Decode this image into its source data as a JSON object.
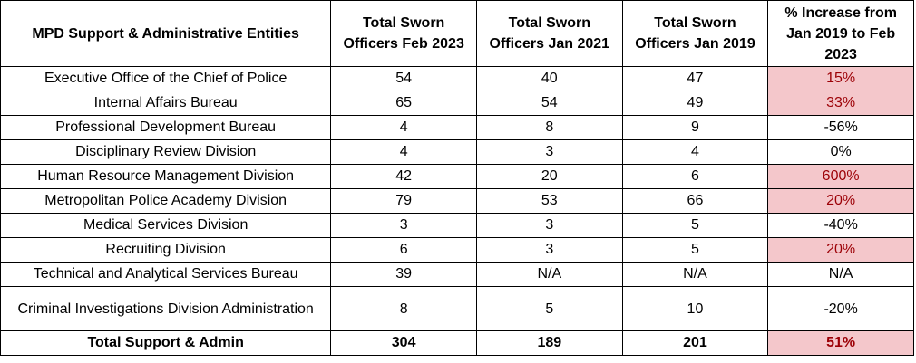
{
  "table": {
    "headers": [
      "MPD Support & Administrative Entities",
      "Total Sworn Officers Feb 2023",
      "Total Sworn Officers Jan 2021",
      "Total Sworn Officers Jan 2019",
      "% Increase from Jan 2019 to Feb 2023"
    ],
    "rows": [
      {
        "entity": "Executive Office of the Chief of Police",
        "feb2023": "54",
        "jan2021": "40",
        "jan2019": "47",
        "pct": "15%",
        "highlight": true
      },
      {
        "entity": "Internal Affairs Bureau",
        "feb2023": "65",
        "jan2021": "54",
        "jan2019": "49",
        "pct": "33%",
        "highlight": true
      },
      {
        "entity": "Professional Development Bureau",
        "feb2023": "4",
        "jan2021": "8",
        "jan2019": "9",
        "pct": "-56%",
        "highlight": false
      },
      {
        "entity": "Disciplinary Review Division",
        "feb2023": "4",
        "jan2021": "3",
        "jan2019": "4",
        "pct": "0%",
        "highlight": false
      },
      {
        "entity": "Human Resource Management Division",
        "feb2023": "42",
        "jan2021": "20",
        "jan2019": "6",
        "pct": "600%",
        "highlight": true
      },
      {
        "entity": "Metropolitan Police Academy Division",
        "feb2023": "79",
        "jan2021": "53",
        "jan2019": "66",
        "pct": "20%",
        "highlight": true
      },
      {
        "entity": "Medical Services Division",
        "feb2023": "3",
        "jan2021": "3",
        "jan2019": "5",
        "pct": "-40%",
        "highlight": false
      },
      {
        "entity": "Recruiting Division",
        "feb2023": "6",
        "jan2021": "3",
        "jan2019": "5",
        "pct": "20%",
        "highlight": true
      },
      {
        "entity": "Technical and Analytical Services Bureau",
        "feb2023": "39",
        "jan2021": "N/A",
        "jan2019": "N/A",
        "pct": "N/A",
        "highlight": false
      },
      {
        "entity": "Criminal Investigations Division Administration",
        "feb2023": "8",
        "jan2021": "5",
        "jan2019": "10",
        "pct": "-20%",
        "highlight": false
      }
    ],
    "total": {
      "entity": "Total Support & Admin",
      "feb2023": "304",
      "jan2021": "189",
      "jan2019": "201",
      "pct": "51%",
      "highlight": true
    }
  },
  "colors": {
    "highlight_fill": "#f4c7cb",
    "highlight_text": "#9c0006"
  }
}
